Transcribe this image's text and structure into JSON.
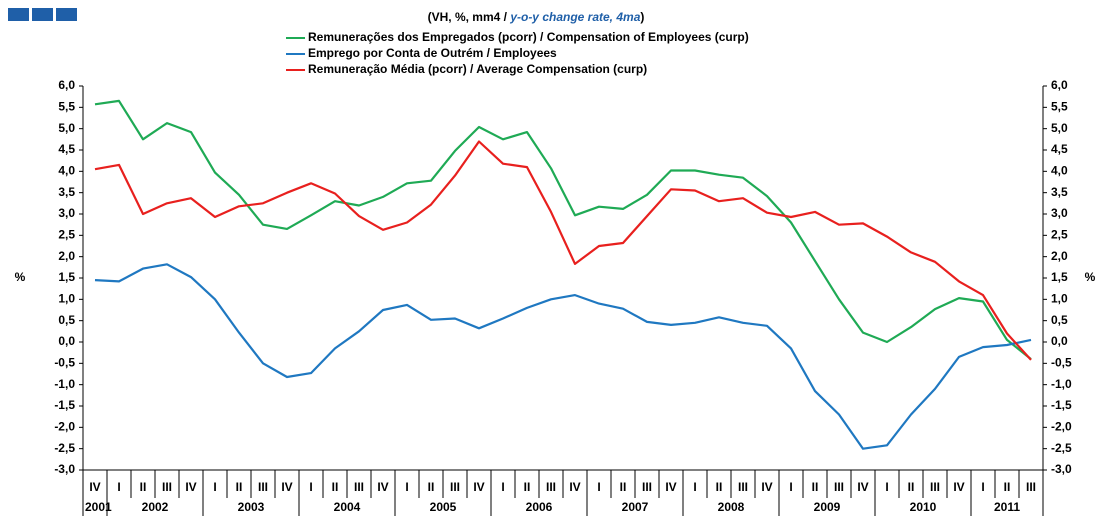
{
  "chart_data": {
    "type": "line",
    "title": "(VH, %, mm4 / ",
    "title_italic": "y-o-y change rate, 4ma",
    "title_end": ")",
    "y_label": "%",
    "y2_label": "%",
    "categories": [
      "IV",
      "I",
      "II",
      "III",
      "IV",
      "I",
      "II",
      "III",
      "IV",
      "I",
      "II",
      "III",
      "IV",
      "I",
      "II",
      "III",
      "IV",
      "I",
      "II",
      "III",
      "IV",
      "I",
      "II",
      "III",
      "IV",
      "I",
      "II",
      "III",
      "IV",
      "I",
      "II",
      "III",
      "IV",
      "I",
      "II",
      "III",
      "IV",
      "I",
      "II",
      "III"
    ],
    "years": [
      "2001",
      "2002",
      "2003",
      "2004",
      "2005",
      "2006",
      "2007",
      "2008",
      "2009",
      "2010",
      "2011"
    ],
    "series": [
      {
        "name": "Remunerações dos Empregados (pcorr) / Compensation of Employees (curp)",
        "color": "#1faa55",
        "values": [
          5.57,
          5.65,
          4.75,
          5.13,
          4.92,
          3.97,
          3.45,
          2.75,
          2.65,
          2.97,
          3.3,
          3.2,
          3.4,
          3.72,
          3.78,
          4.48,
          5.04,
          4.75,
          4.92,
          4.07,
          2.97,
          3.17,
          3.12,
          3.45,
          4.02,
          4.02,
          3.92,
          3.85,
          3.42,
          2.8,
          1.9,
          1.0,
          0.22,
          0.0,
          0.35,
          0.77,
          1.03,
          0.95,
          0.05,
          -0.4
        ]
      },
      {
        "name": "Emprego por Conta de Outrém / Employees",
        "color": "#1f78c1",
        "values": [
          1.45,
          1.42,
          1.72,
          1.82,
          1.52,
          1.0,
          0.22,
          -0.5,
          -0.82,
          -0.73,
          -0.15,
          0.25,
          0.75,
          0.87,
          0.52,
          0.55,
          0.32,
          0.55,
          0.8,
          1.0,
          1.1,
          0.9,
          0.78,
          0.47,
          0.4,
          0.45,
          0.58,
          0.45,
          0.38,
          -0.15,
          -1.15,
          -1.7,
          -2.5,
          -2.42,
          -1.7,
          -1.1,
          -0.35,
          -0.12,
          -0.07,
          0.05
        ]
      },
      {
        "name": "Remuneração Média (pcorr) / Average Compensation (curp)",
        "color": "#e8201e",
        "values": [
          4.05,
          4.15,
          3.0,
          3.25,
          3.37,
          2.93,
          3.18,
          3.25,
          3.5,
          3.72,
          3.48,
          2.95,
          2.63,
          2.8,
          3.22,
          3.9,
          4.7,
          4.18,
          4.1,
          3.05,
          1.83,
          2.25,
          2.32,
          2.95,
          3.58,
          3.55,
          3.3,
          3.37,
          3.03,
          2.93,
          3.05,
          2.75,
          2.78,
          2.47,
          2.1,
          1.88,
          1.42,
          1.1,
          0.2,
          -0.42
        ]
      }
    ],
    "ylim": [
      -3,
      6
    ],
    "yticks": [
      {
        "value": 6,
        "label": "6,0"
      },
      {
        "value": 5.5,
        "label": "5,5"
      },
      {
        "value": 5,
        "label": "5,0"
      },
      {
        "value": 4.5,
        "label": "4,5"
      },
      {
        "value": 4,
        "label": "4,0"
      },
      {
        "value": 3.5,
        "label": "3,5"
      },
      {
        "value": 3,
        "label": "3,0"
      },
      {
        "value": 2.5,
        "label": "2,5"
      },
      {
        "value": 2,
        "label": "2,0"
      },
      {
        "value": 1.5,
        "label": "1,5"
      },
      {
        "value": 1,
        "label": "1,0"
      },
      {
        "value": 0.5,
        "label": "0,5"
      },
      {
        "value": 0,
        "label": "0,0"
      },
      {
        "value": -0.5,
        "label": "-0,5"
      },
      {
        "value": -1,
        "label": "-1,0"
      },
      {
        "value": -1.5,
        "label": "-1,5"
      },
      {
        "value": -2,
        "label": "-2,0"
      },
      {
        "value": -2.5,
        "label": "-2,5"
      },
      {
        "value": -3,
        "label": "-3,0"
      }
    ],
    "y2lim": [
      -3,
      6
    ],
    "y2ticks": [
      {
        "value": 6,
        "label": "6,0"
      },
      {
        "value": 5.5,
        "label": "5,5"
      },
      {
        "value": 5,
        "label": "5,0"
      },
      {
        "value": 4.5,
        "label": "4,5"
      },
      {
        "value": 4,
        "label": "4,0"
      },
      {
        "value": 3.5,
        "label": "3,5"
      },
      {
        "value": 3,
        "label": "3,0"
      },
      {
        "value": 2.5,
        "label": "2,5"
      },
      {
        "value": 2,
        "label": "2,0"
      },
      {
        "value": 1.5,
        "label": "1,5"
      },
      {
        "value": 1,
        "label": "1,0"
      },
      {
        "value": 0.5,
        "label": "0,5"
      },
      {
        "value": 0,
        "label": "0,0"
      },
      {
        "value": -0.5,
        "label": "-0,5"
      },
      {
        "value": -1,
        "label": "-1,0"
      },
      {
        "value": -1.5,
        "label": "-1,5"
      },
      {
        "value": -2,
        "label": "-2,0"
      },
      {
        "value": -2.5,
        "label": "-2,5"
      },
      {
        "value": -3,
        "label": "-3,0"
      }
    ]
  }
}
